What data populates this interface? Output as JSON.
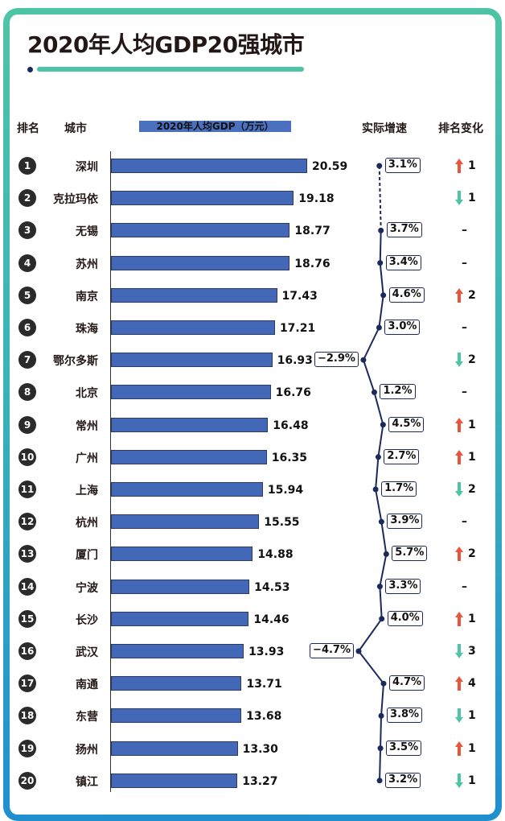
{
  "colors": {
    "bar": "#4468b8",
    "line": "#1b2a5a",
    "up": "#e8553a",
    "down": "#4ec4a6",
    "frame_top": "#4ec4a6",
    "frame_bottom": "#1f8fcf"
  },
  "chart_data": {
    "type": "bar",
    "title": "2020年人均GDP20强城市",
    "headers": {
      "rank": "排名",
      "city": "城市",
      "gdp": "2020年人均GDP（万元）",
      "growth": "实际增速",
      "change": "排名变化"
    },
    "rows": [
      {
        "rank": "1",
        "city": "深圳",
        "gdp": 20.59,
        "growth": 3.1,
        "dir": "up",
        "change": "1"
      },
      {
        "rank": "2",
        "city": "克拉玛依",
        "gdp": 19.18,
        "growth": null,
        "dir": "down",
        "change": "1"
      },
      {
        "rank": "3",
        "city": "无锡",
        "gdp": 18.77,
        "growth": 3.7,
        "dir": "none",
        "change": "–"
      },
      {
        "rank": "4",
        "city": "苏州",
        "gdp": 18.76,
        "growth": 3.4,
        "dir": "none",
        "change": "–"
      },
      {
        "rank": "5",
        "city": "南京",
        "gdp": 17.43,
        "growth": 4.6,
        "dir": "up",
        "change": "2"
      },
      {
        "rank": "6",
        "city": "珠海",
        "gdp": 17.21,
        "growth": 3.0,
        "dir": "none",
        "change": "–"
      },
      {
        "rank": "7",
        "city": "鄂尔多斯",
        "gdp": 16.93,
        "growth": -2.9,
        "dir": "down",
        "change": "2"
      },
      {
        "rank": "8",
        "city": "北京",
        "gdp": 16.76,
        "growth": 1.2,
        "dir": "none",
        "change": "–"
      },
      {
        "rank": "9",
        "city": "常州",
        "gdp": 16.48,
        "growth": 4.5,
        "dir": "up",
        "change": "1"
      },
      {
        "rank": "10",
        "city": "广州",
        "gdp": 16.35,
        "growth": 2.7,
        "dir": "up",
        "change": "1"
      },
      {
        "rank": "11",
        "city": "上海",
        "gdp": 15.94,
        "growth": 1.7,
        "dir": "down",
        "change": "2"
      },
      {
        "rank": "12",
        "city": "杭州",
        "gdp": 15.55,
        "growth": 3.9,
        "dir": "none",
        "change": "–"
      },
      {
        "rank": "13",
        "city": "厦门",
        "gdp": 14.88,
        "growth": 5.7,
        "dir": "up",
        "change": "2"
      },
      {
        "rank": "14",
        "city": "宁波",
        "gdp": 14.53,
        "growth": 3.3,
        "dir": "none",
        "change": "–"
      },
      {
        "rank": "15",
        "city": "长沙",
        "gdp": 14.46,
        "growth": 4.0,
        "dir": "up",
        "change": "1"
      },
      {
        "rank": "16",
        "city": "武汉",
        "gdp": 13.93,
        "growth": -4.7,
        "dir": "down",
        "change": "3"
      },
      {
        "rank": "17",
        "city": "南通",
        "gdp": 13.71,
        "growth": 4.7,
        "dir": "up",
        "change": "4"
      },
      {
        "rank": "18",
        "city": "东营",
        "gdp": 13.68,
        "growth": 3.8,
        "dir": "down",
        "change": "1"
      },
      {
        "rank": "19",
        "city": "扬州",
        "gdp": 13.3,
        "growth": 3.5,
        "dir": "up",
        "change": "1"
      },
      {
        "rank": "20",
        "city": "镇江",
        "gdp": 13.27,
        "growth": 3.2,
        "dir": "down",
        "change": "1"
      }
    ]
  }
}
